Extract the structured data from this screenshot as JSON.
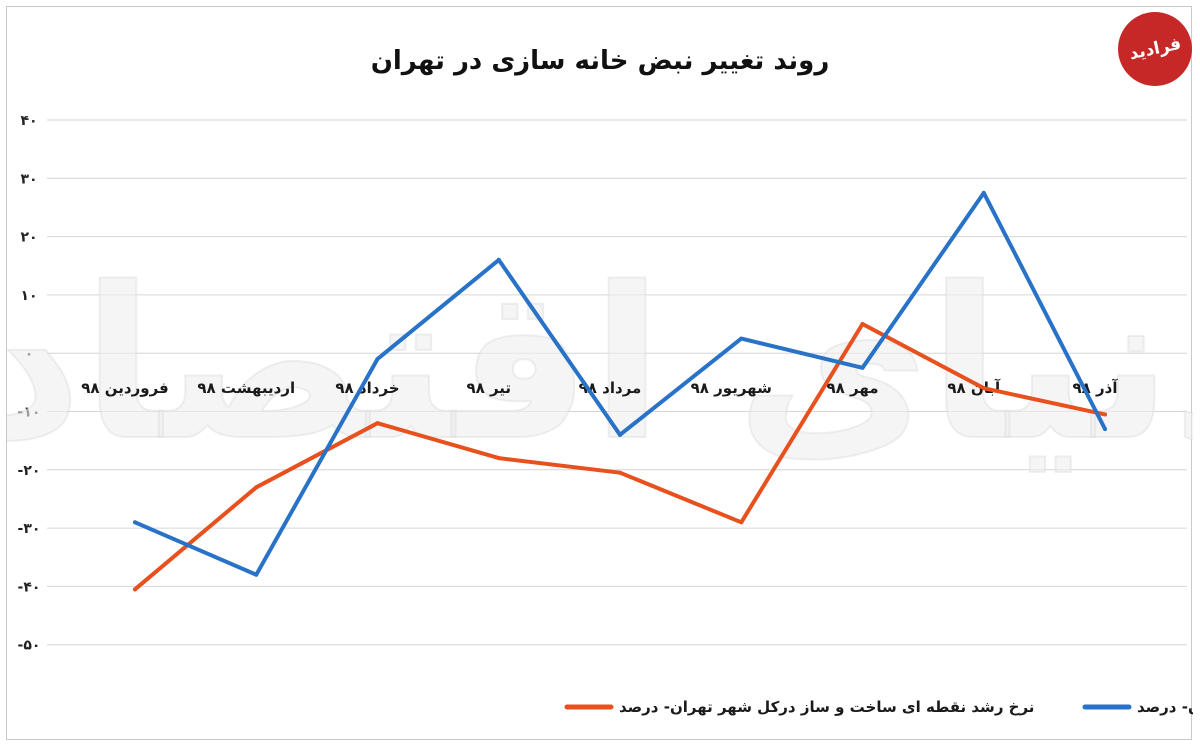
{
  "logo": {
    "text": "فرادید",
    "color": "#c62828"
  },
  "watermark": {
    "text": "دنیای اقتصاد"
  },
  "chart_data": {
    "type": "line",
    "title": "روند تغییر نبض خانه سازی در تهران",
    "categories": [
      "فروردین ۹۸",
      "اردیبهشت ۹۸",
      "خرداد ۹۸",
      "تیر ۹۸",
      "مرداد ۹۸",
      "شهریور ۹۸",
      "مهر ۹۸",
      "آبان ۹۸",
      "آذر ۹۸"
    ],
    "y_ticks": [
      "۴۰",
      "۳۰",
      "۲۰",
      "۱۰",
      "۰",
      "-۱۰",
      "-۲۰",
      "-۳۰",
      "-۴۰",
      "-۵۰"
    ],
    "y_tick_values": [
      40,
      30,
      20,
      10,
      0,
      -10,
      -20,
      -30,
      -40,
      -50
    ],
    "ylim": [
      -50,
      40
    ],
    "grid": true,
    "legend_position": "bottom",
    "series": [
      {
        "name": "نرخ رشد نقطه ای ساخت و ساز در بافت فرسوده تهران- درصد",
        "color": "#2872c8",
        "values": [
          -29,
          -38,
          -1,
          16,
          -14,
          2.5,
          -2.5,
          27.5,
          -13
        ]
      },
      {
        "name": "نرخ رشد نقطه ای ساخت و ساز درکل شهر تهران- درصد",
        "color": "#e8501e",
        "values": [
          -40.5,
          -23,
          -12,
          -18,
          -20.5,
          -29,
          5,
          -6,
          -10.5
        ]
      }
    ]
  }
}
